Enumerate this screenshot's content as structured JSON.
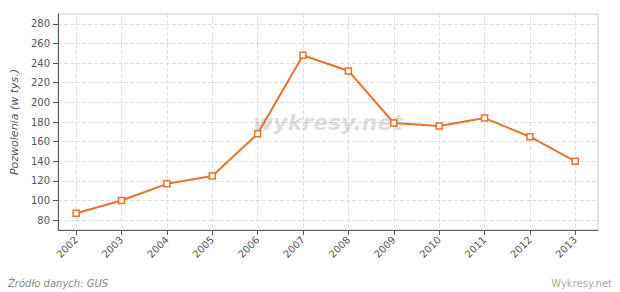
{
  "chart_data": {
    "type": "line",
    "x": [
      2002,
      2003,
      2004,
      2005,
      2006,
      2007,
      2008,
      2009,
      2010,
      2011,
      2012,
      2013
    ],
    "values": [
      87,
      100,
      117,
      125,
      168,
      248,
      232,
      179,
      176,
      184,
      165,
      140
    ],
    "color": "#e8722a",
    "marker": "square",
    "ylabel": "Pozwolenia (w tys.)",
    "xlim": [
      2001.6,
      2013.5
    ],
    "xticks": [
      2002,
      2003,
      2004,
      2005,
      2006,
      2007,
      2008,
      2009,
      2010,
      2011,
      2012,
      2013
    ],
    "ylim": [
      70,
      290
    ],
    "yticks": [
      80,
      100,
      120,
      140,
      160,
      180,
      200,
      220,
      240,
      260,
      280
    ],
    "grid": true,
    "annotations": [
      "wykresy.net",
      "Źródło danych: GUS",
      "Wykresy.net"
    ]
  }
}
